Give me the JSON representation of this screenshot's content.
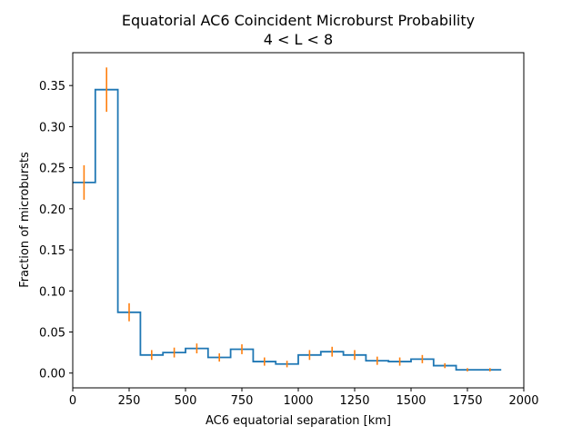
{
  "chart_data": {
    "type": "step",
    "title": "Equatorial AC6 Coincident Microburst Probability",
    "subtitle": "4 < L < 8",
    "xlabel": "AC6 equatorial separation [km]",
    "ylabel": "Fraction of microbursts",
    "xlim": [
      0,
      2000
    ],
    "ylim": [
      -0.018,
      0.39
    ],
    "xticks": [
      0,
      250,
      500,
      750,
      1000,
      1250,
      1500,
      1750,
      2000
    ],
    "yticks": [
      0.0,
      0.05,
      0.1,
      0.15,
      0.2,
      0.25,
      0.3,
      0.35
    ],
    "ytick_labels": [
      "0.00",
      "0.05",
      "0.10",
      "0.15",
      "0.20",
      "0.25",
      "0.30",
      "0.35"
    ],
    "grid": false,
    "series": [
      {
        "step_color": "#1f77b4",
        "errorbar_color": "#ff7f0e",
        "bin_edges": [
          0,
          100,
          200,
          300,
          400,
          500,
          600,
          700,
          800,
          900,
          1000,
          1100,
          1200,
          1300,
          1400,
          1500,
          1600,
          1700,
          1800,
          1900
        ],
        "bin_centers": [
          50,
          150,
          250,
          350,
          450,
          550,
          650,
          750,
          850,
          950,
          1050,
          1150,
          1250,
          1350,
          1450,
          1550,
          1650,
          1750,
          1850
        ],
        "values": [
          0.232,
          0.345,
          0.074,
          0.022,
          0.025,
          0.03,
          0.019,
          0.029,
          0.014,
          0.011,
          0.022,
          0.026,
          0.022,
          0.015,
          0.014,
          0.017,
          0.009,
          0.004,
          0.004
        ],
        "errors": [
          0.021,
          0.027,
          0.011,
          0.006,
          0.006,
          0.006,
          0.005,
          0.006,
          0.005,
          0.004,
          0.006,
          0.006,
          0.006,
          0.005,
          0.005,
          0.005,
          0.003,
          0.002,
          0.002
        ]
      }
    ]
  }
}
